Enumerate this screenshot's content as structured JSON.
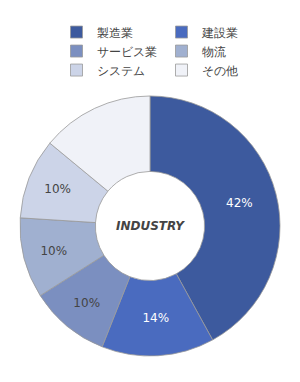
{
  "chart_data": {
    "type": "donut",
    "categories": [
      "製造業",
      "建設業",
      "サービス業",
      "物流",
      "システム",
      "その他"
    ],
    "values": [
      42,
      14,
      10,
      10,
      10,
      14
    ],
    "colors": [
      "#3d5a9e",
      "#4a6bbf",
      "#7b8fc0",
      "#a0b0d0",
      "#ccd4e8",
      "#f0f2f8"
    ],
    "value_labels": [
      "42%",
      "14%",
      "10%",
      "10%",
      "10%",
      null
    ],
    "data_labels": true,
    "legend": "top",
    "annotations": [
      "INDUSTRY"
    ]
  }
}
